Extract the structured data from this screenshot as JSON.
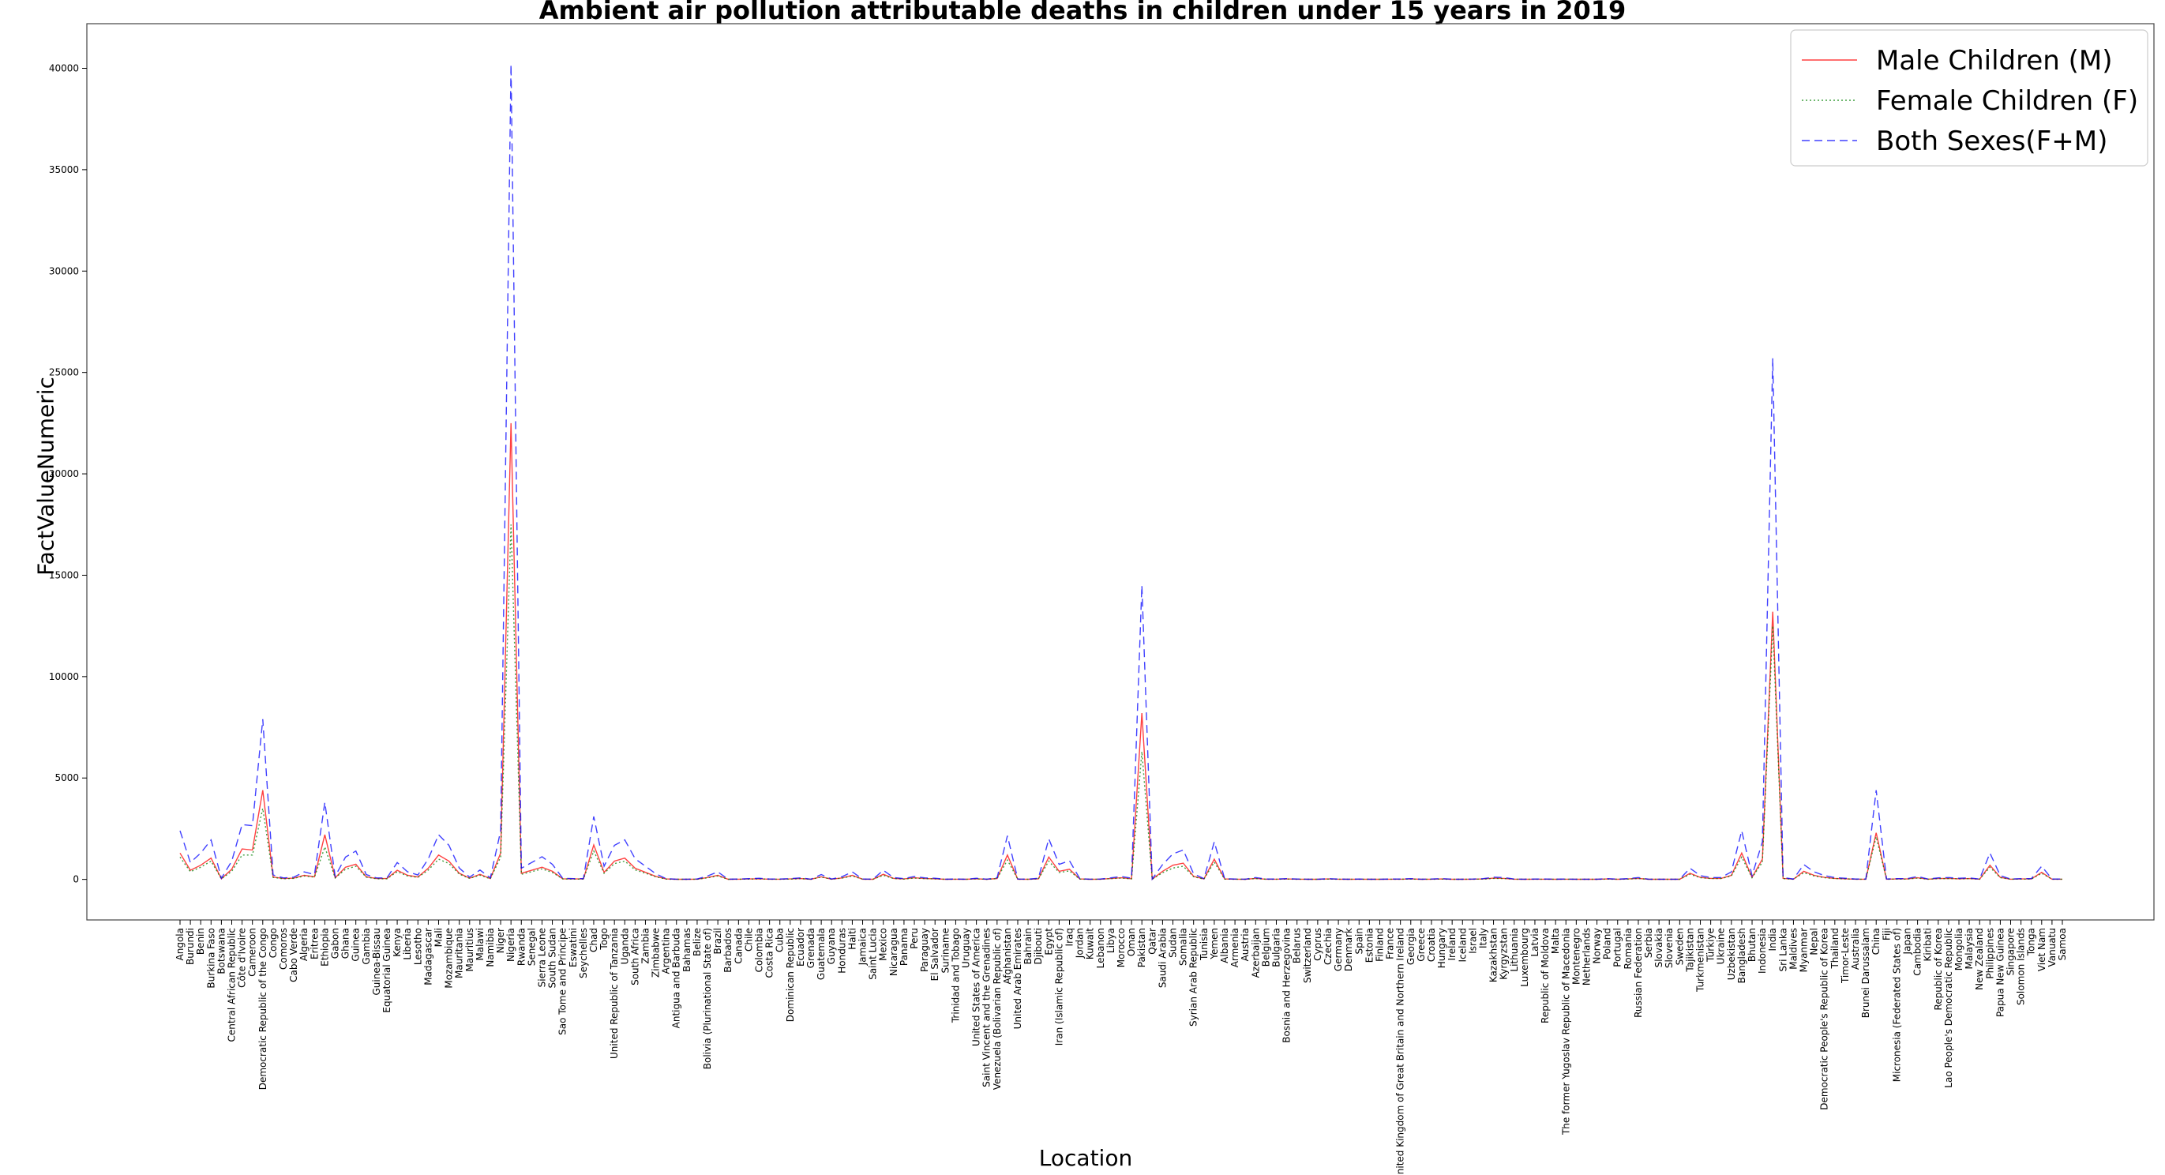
{
  "chart_data": {
    "type": "line",
    "title": "Ambient air pollution attributable deaths in children under 15 years in 2019",
    "xlabel": "Location",
    "ylabel": "FactValueNumeric",
    "ylim": [
      -2000,
      42200
    ],
    "yticks": [
      0,
      5000,
      10000,
      15000,
      20000,
      25000,
      30000,
      35000,
      40000
    ],
    "grid": false,
    "legend_position": "top-right",
    "categories": [
      "Angola",
      "Burundi",
      "Benin",
      "Burkina Faso",
      "Botswana",
      "Central African Republic",
      "Côte d'Ivoire",
      "Cameroon",
      "Democratic Republic of the Congo",
      "Congo",
      "Comoros",
      "Cabo Verde",
      "Algeria",
      "Eritrea",
      "Ethiopia",
      "Gabon",
      "Ghana",
      "Guinea",
      "Gambia",
      "Guinea-Bissau",
      "Equatorial Guinea",
      "Kenya",
      "Liberia",
      "Lesotho",
      "Madagascar",
      "Mali",
      "Mozambique",
      "Mauritania",
      "Mauritius",
      "Malawi",
      "Namibia",
      "Niger",
      "Nigeria",
      "Rwanda",
      "Senegal",
      "Sierra Leone",
      "South Sudan",
      "Sao Tome and Principe",
      "Eswatini",
      "Seychelles",
      "Chad",
      "Togo",
      "United Republic of Tanzania",
      "Uganda",
      "South Africa",
      "Zambia",
      "Zimbabwe",
      "Argentina",
      "Antigua and Barbuda",
      "Bahamas",
      "Belize",
      "Bolivia (Plurinational State of)",
      "Brazil",
      "Barbados",
      "Canada",
      "Chile",
      "Colombia",
      "Costa Rica",
      "Cuba",
      "Dominican Republic",
      "Ecuador",
      "Grenada",
      "Guatemala",
      "Guyana",
      "Honduras",
      "Haiti",
      "Jamaica",
      "Saint Lucia",
      "Mexico",
      "Nicaragua",
      "Panama",
      "Peru",
      "Paraguay",
      "El Salvador",
      "Suriname",
      "Trinidad and Tobago",
      "Uruguay",
      "United States of America",
      "Saint Vincent and the Grenadines",
      "Venezuela (Bolivarian Republic of)",
      "Afghanistan",
      "United Arab Emirates",
      "Bahrain",
      "Djibouti",
      "Egypt",
      "Iran (Islamic Republic of)",
      "Iraq",
      "Jordan",
      "Kuwait",
      "Lebanon",
      "Libya",
      "Morocco",
      "Oman",
      "Pakistan",
      "Qatar",
      "Saudi Arabia",
      "Sudan",
      "Somalia",
      "Syrian Arab Republic",
      "Tunisia",
      "Yemen",
      "Albania",
      "Armenia",
      "Austria",
      "Azerbaijan",
      "Belgium",
      "Bulgaria",
      "Bosnia and Herzegovina",
      "Belarus",
      "Switzerland",
      "Cyprus",
      "Czechia",
      "Germany",
      "Denmark",
      "Spain",
      "Estonia",
      "Finland",
      "France",
      "United Kingdom of Great Britain and Northern Ireland",
      "Georgia",
      "Greece",
      "Croatia",
      "Hungary",
      "Ireland",
      "Iceland",
      "Israel",
      "Italy",
      "Kazakhstan",
      "Kyrgyzstan",
      "Lithuania",
      "Luxembourg",
      "Latvia",
      "Republic of Moldova",
      "Malta",
      "The former Yugoslav Republic of Macedonia",
      "Montenegro",
      "Netherlands",
      "Norway",
      "Poland",
      "Portugal",
      "Romania",
      "Russian Federation",
      "Serbia",
      "Slovakia",
      "Slovenia",
      "Sweden",
      "Tajikistan",
      "Turkmenistan",
      "Türkiye",
      "Ukraine",
      "Uzbekistan",
      "Bangladesh",
      "Bhutan",
      "Indonesia",
      "India",
      "Sri Lanka",
      "Maldives",
      "Myanmar",
      "Nepal",
      "Democratic People's Republic of Korea",
      "Thailand",
      "Timor-Leste",
      "Australia",
      "Brunei Darussalam",
      "China",
      "Fiji",
      "Micronesia (Federated States of)",
      "Japan",
      "Cambodia",
      "Kiribati",
      "Republic of Korea",
      "Lao People's Democratic Republic",
      "Mongolia",
      "Malaysia",
      "New Zealand",
      "Philippines",
      "Papua New Guinea",
      "Singapore",
      "Solomon Islands",
      "Tonga",
      "Viet Nam",
      "Vanuatu",
      "Samoa"
    ],
    "series": [
      {
        "name": "Male Children (M)",
        "color": "#ff0000",
        "style": "solid",
        "values": [
          1300,
          450,
          700,
          1050,
          30,
          500,
          1500,
          1450,
          4400,
          120,
          40,
          60,
          200,
          130,
          2200,
          80,
          600,
          750,
          130,
          40,
          40,
          450,
          200,
          120,
          550,
          1200,
          900,
          300,
          60,
          250,
          40,
          1300,
          22500,
          300,
          450,
          600,
          400,
          30,
          20,
          20,
          1700,
          350,
          900,
          1050,
          550,
          350,
          150,
          20,
          5,
          5,
          10,
          90,
          200,
          5,
          10,
          20,
          30,
          10,
          10,
          20,
          40,
          5,
          130,
          10,
          70,
          200,
          10,
          5,
          250,
          50,
          20,
          80,
          40,
          30,
          5,
          10,
          5,
          30,
          5,
          40,
          1200,
          10,
          5,
          30,
          1100,
          400,
          500,
          20,
          5,
          10,
          40,
          80,
          30,
          8200,
          10,
          400,
          700,
          800,
          150,
          20,
          1000,
          20,
          10,
          5,
          50,
          10,
          10,
          20,
          10,
          5,
          5,
          20,
          10,
          5,
          10,
          5,
          5,
          10,
          10,
          20,
          5,
          10,
          20,
          5,
          5,
          10,
          20,
          60,
          50,
          10,
          5,
          10,
          10,
          5,
          10,
          5,
          5,
          5,
          20,
          5,
          20,
          50,
          5,
          5,
          5,
          5,
          300,
          100,
          50,
          50,
          200,
          1300,
          100,
          1000,
          13200,
          50,
          10,
          400,
          200,
          100,
          50,
          30,
          10,
          10,
          2300,
          10,
          20,
          20,
          80,
          10,
          40,
          50,
          30,
          40,
          10,
          700,
          100,
          10,
          20,
          20,
          350,
          10,
          10
        ],
        "legend_only": false
      },
      {
        "name": "Female Children (F)",
        "color": "#008000",
        "style": "dotted",
        "values": [
          1100,
          380,
          600,
          900,
          25,
          400,
          1200,
          1200,
          3500,
          100,
          30,
          50,
          170,
          110,
          1600,
          70,
          500,
          650,
          110,
          30,
          30,
          380,
          170,
          100,
          460,
          1000,
          780,
          260,
          50,
          210,
          30,
          1100,
          17500,
          250,
          380,
          520,
          340,
          25,
          15,
          15,
          1400,
          300,
          780,
          900,
          470,
          300,
          130,
          15,
          4,
          4,
          8,
          75,
          170,
          4,
          8,
          15,
          25,
          8,
          8,
          15,
          35,
          4,
          110,
          8,
          60,
          170,
          8,
          4,
          200,
          40,
          15,
          65,
          35,
          25,
          4,
          8,
          4,
          25,
          4,
          35,
          950,
          8,
          4,
          25,
          900,
          340,
          420,
          15,
          4,
          8,
          35,
          65,
          25,
          6300,
          8,
          330,
          560,
          650,
          130,
          15,
          850,
          15,
          8,
          4,
          40,
          8,
          8,
          15,
          8,
          4,
          4,
          15,
          8,
          4,
          8,
          4,
          4,
          8,
          8,
          15,
          4,
          8,
          15,
          4,
          4,
          8,
          15,
          50,
          40,
          8,
          4,
          8,
          8,
          4,
          8,
          4,
          4,
          4,
          15,
          4,
          15,
          40,
          4,
          4,
          4,
          4,
          250,
          85,
          40,
          40,
          170,
          1100,
          85,
          850,
          12500,
          40,
          8,
          330,
          170,
          85,
          40,
          25,
          8,
          8,
          2100,
          8,
          15,
          15,
          65,
          8,
          35,
          40,
          25,
          35,
          8,
          600,
          85,
          8,
          15,
          15,
          300,
          8,
          8
        ]
      },
      {
        "name": "Both Sexes(F+M)",
        "color": "#0000ff",
        "style": "dashed",
        "values": [
          2400,
          830,
          1300,
          1950,
          55,
          900,
          2700,
          2650,
          7900,
          220,
          70,
          110,
          370,
          240,
          3800,
          150,
          1100,
          1400,
          240,
          70,
          70,
          830,
          370,
          220,
          1010,
          2200,
          1680,
          560,
          110,
          460,
          70,
          2400,
          40200,
          550,
          830,
          1120,
          740,
          55,
          35,
          35,
          3100,
          650,
          1680,
          1950,
          1020,
          650,
          280,
          35,
          9,
          9,
          18,
          165,
          370,
          9,
          18,
          35,
          55,
          18,
          18,
          35,
          75,
          9,
          240,
          18,
          130,
          370,
          18,
          9,
          450,
          90,
          35,
          145,
          75,
          55,
          9,
          18,
          9,
          55,
          9,
          75,
          2150,
          18,
          9,
          55,
          2000,
          740,
          920,
          35,
          9,
          18,
          75,
          145,
          55,
          14500,
          18,
          730,
          1260,
          1450,
          280,
          35,
          1850,
          35,
          18,
          9,
          90,
          18,
          18,
          35,
          18,
          9,
          9,
          35,
          18,
          9,
          18,
          9,
          9,
          18,
          18,
          35,
          9,
          18,
          35,
          9,
          9,
          18,
          35,
          110,
          90,
          18,
          9,
          18,
          18,
          9,
          18,
          9,
          9,
          9,
          35,
          9,
          35,
          90,
          9,
          9,
          9,
          9,
          550,
          185,
          90,
          90,
          370,
          2400,
          185,
          1850,
          25700,
          90,
          18,
          730,
          370,
          185,
          90,
          55,
          18,
          18,
          4400,
          18,
          35,
          35,
          145,
          18,
          75,
          90,
          55,
          75,
          18,
          1300,
          185,
          18,
          35,
          35,
          650,
          18,
          18
        ]
      }
    ]
  }
}
